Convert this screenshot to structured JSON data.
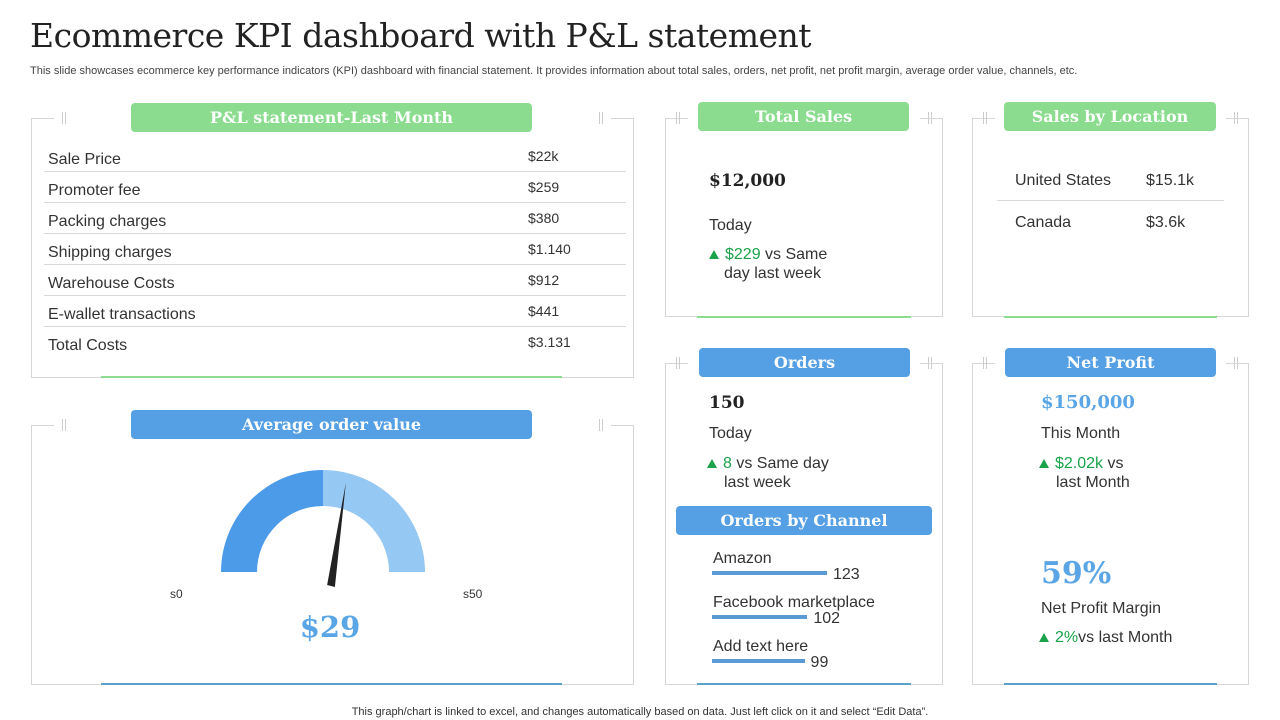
{
  "title": "Ecommerce KPI dashboard with P&L statement",
  "subtitle": "This slide showcases ecommerce key performance indicators (KPI) dashboard with financial statement. It provides information about total sales, orders, net profit, net profit margin, average order value, channels, etc.",
  "pl": {
    "header": "P&L statement-Last Month",
    "rows": [
      {
        "label": "Sale Price",
        "value": "$22k"
      },
      {
        "label": "Promoter fee",
        "value": "$259"
      },
      {
        "label": "Packing charges",
        "value": "$380"
      },
      {
        "label": "Shipping charges",
        "value": "$1.140"
      },
      {
        "label": "Warehouse  Costs",
        "value": "$912"
      },
      {
        "label": "E-wallet transactions",
        "value": "$441"
      },
      {
        "label": "Total Costs",
        "value": "$3.131"
      }
    ]
  },
  "aov": {
    "header": "Average order value",
    "min_label": "s0",
    "max_label": "s50",
    "value_label": "$29",
    "gauge_value": 29,
    "gauge_max": 50
  },
  "total_sales": {
    "header": "Total Sales",
    "amount": "$12,000",
    "period": "Today",
    "delta": "$229",
    "delta_text": " vs Same",
    "delta_text2": "day last week"
  },
  "location": {
    "header": "Sales by Location",
    "rows": [
      {
        "country": "United States",
        "value": "$15.1k"
      },
      {
        "country": "Canada",
        "value": "$3.6k"
      }
    ]
  },
  "orders": {
    "header": "Orders",
    "count": "150",
    "period": "Today",
    "delta": "8",
    "delta_text": " vs  Same day",
    "delta_text2": "last week"
  },
  "channel": {
    "header": "Orders by Channel",
    "items": [
      {
        "name": "Amazon",
        "value": 123
      },
      {
        "name": "Facebook marketplace",
        "value": 102
      },
      {
        "name": "Add text here",
        "value": 99
      }
    ]
  },
  "net_profit": {
    "header": "Net Profit",
    "amount": "$150,000",
    "period": "This Month",
    "delta": "$2.02k",
    "delta_text": " vs",
    "delta_text2": "last Month",
    "margin": "59%",
    "margin_label": "Net Profit Margin",
    "margin_delta": "2%",
    "margin_delta_text": "vs  last Month"
  },
  "footer": "This graph/chart is linked to excel,  and changes automatically based on data. Just left click on it and select “Edit Data”.",
  "colors": {
    "green": "#8bdc8f",
    "blue": "#559fe4",
    "up": "#1aa34a",
    "gauge_dark": "#4c9be8",
    "gauge_light": "#95c8f3"
  }
}
